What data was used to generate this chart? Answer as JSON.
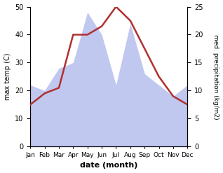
{
  "months": [
    "Jan",
    "Feb",
    "Mar",
    "Apr",
    "May",
    "Jun",
    "Jul",
    "Aug",
    "Sep",
    "Oct",
    "Nov",
    "Dec"
  ],
  "temp": [
    15,
    19,
    21,
    40,
    40,
    43,
    50,
    45,
    35,
    25,
    18,
    15
  ],
  "precip": [
    11,
    10,
    14,
    15,
    24,
    20,
    11,
    22,
    13,
    11,
    9,
    11
  ],
  "temp_color": "#b03030",
  "precip_fill_color": "#c0c8f0",
  "xlabel": "date (month)",
  "ylabel_left": "max temp (C)",
  "ylabel_right": "med. precipitation (kg/m2)",
  "ylim_left": [
    0,
    50
  ],
  "ylim_right": [
    0,
    25
  ],
  "yticks_left": [
    0,
    10,
    20,
    30,
    40,
    50
  ],
  "yticks_right": [
    0,
    5,
    10,
    15,
    20,
    25
  ],
  "bg_color": "#ffffff"
}
